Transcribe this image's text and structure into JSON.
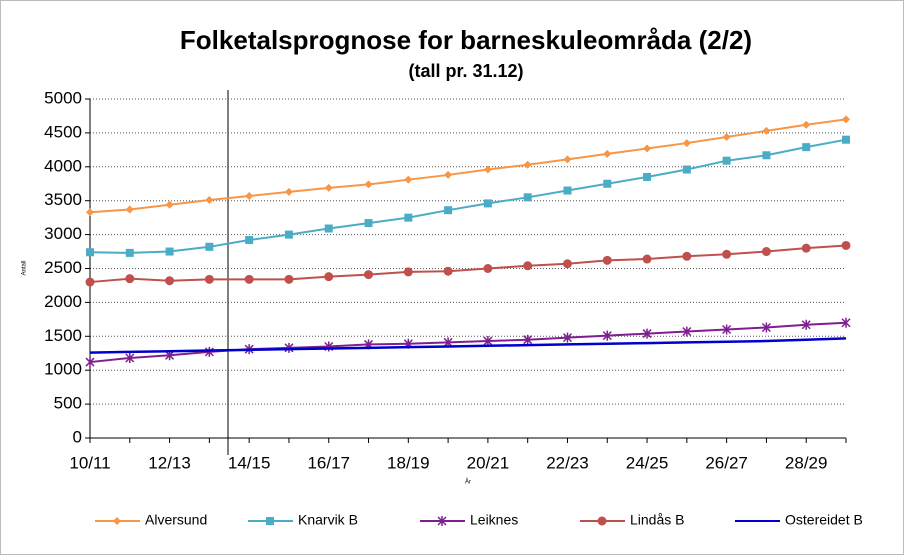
{
  "chart_data": {
    "type": "line",
    "title": "Folketalsprognose for barneskuleområda (2/2)",
    "subtitle": "(tall pr. 31.12)",
    "y_label": "Antall",
    "x_label": "År",
    "categories": [
      "10/11",
      null,
      "12/13",
      null,
      "14/15",
      null,
      "16/17",
      null,
      "18/19",
      null,
      "20/21",
      null,
      "22/23",
      null,
      "24/25",
      null,
      "26/27",
      null,
      "28/29",
      null
    ],
    "series": [
      {
        "name": "Alversund",
        "color": "#f79646",
        "marker": "diamond",
        "values": [
          3330,
          3370,
          3440,
          3510,
          3570,
          3630,
          3690,
          3740,
          3810,
          3880,
          3960,
          4030,
          4110,
          4190,
          4270,
          4350,
          4440,
          4530,
          4620,
          4700
        ]
      },
      {
        "name": "Knarvik B",
        "color": "#4bacc6",
        "marker": "square",
        "values": [
          2740,
          2730,
          2750,
          2820,
          2920,
          3000,
          3090,
          3170,
          3250,
          3360,
          3460,
          3550,
          3650,
          3750,
          3850,
          3960,
          4090,
          4170,
          4290,
          4400
        ]
      },
      {
        "name": "Leiknes",
        "color": "#7f1f8f",
        "marker": "star",
        "values": [
          1120,
          1180,
          1220,
          1270,
          1310,
          1330,
          1350,
          1380,
          1390,
          1410,
          1430,
          1450,
          1480,
          1510,
          1540,
          1570,
          1600,
          1630,
          1670,
          1700
        ]
      },
      {
        "name": "Lindås B",
        "color": "#c0504d",
        "marker": "circle",
        "values": [
          2300,
          2350,
          2320,
          2340,
          2340,
          2340,
          2380,
          2410,
          2450,
          2460,
          2500,
          2540,
          2570,
          2620,
          2640,
          2680,
          2710,
          2750,
          2800,
          2840
        ]
      },
      {
        "name": "Ostereidet B",
        "color": "#0000cc",
        "marker": "none",
        "values": [
          1260,
          1270,
          1280,
          1290,
          1300,
          1310,
          1320,
          1330,
          1340,
          1350,
          1360,
          1370,
          1380,
          1390,
          1400,
          1410,
          1420,
          1430,
          1450,
          1470
        ]
      }
    ],
    "ylim": [
      0,
      5000
    ],
    "yticks": [
      0,
      500,
      1000,
      1500,
      2000,
      2500,
      3000,
      3500,
      4000,
      4500,
      5000
    ],
    "grid": true,
    "legend": "bottom"
  }
}
